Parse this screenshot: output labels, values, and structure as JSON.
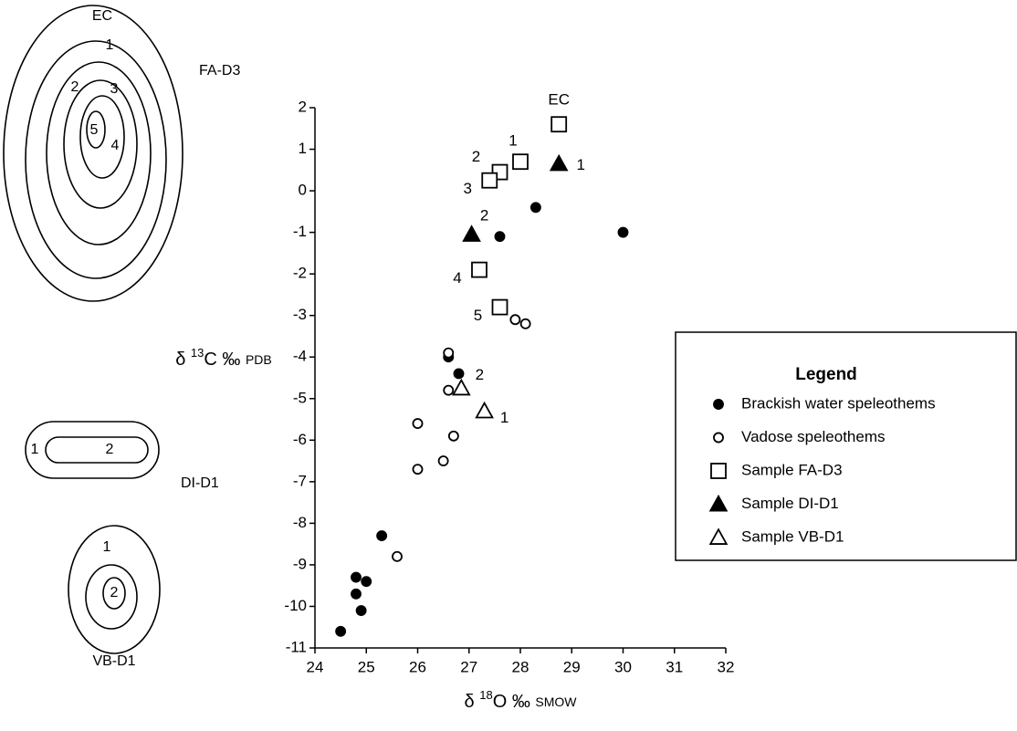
{
  "chart_data": {
    "type": "scatter",
    "x_label": {
      "delta": "δ",
      "isotope": "18",
      "element": "O",
      "unit": "‰",
      "standard": "SMOW"
    },
    "y_label": {
      "delta": "δ",
      "isotope": "13",
      "element": "C",
      "unit": "‰",
      "standard": "PDB"
    },
    "xlim": [
      24,
      32
    ],
    "xticks": [
      24,
      25,
      26,
      27,
      28,
      29,
      30,
      31,
      32
    ],
    "ylim": [
      -11,
      2
    ],
    "yticks": [
      -11,
      -10,
      -9,
      -8,
      -7,
      -6,
      -5,
      -4,
      -3,
      -2,
      -1,
      0,
      1,
      2
    ],
    "legend": {
      "title": "Legend",
      "position": "right"
    },
    "series": [
      {
        "name": "Brackish water speleothems",
        "color": "#000000",
        "marker": "circle",
        "filled": true,
        "x": [
          28.3,
          30.0,
          27.6,
          26.6,
          26.8,
          25.3,
          24.8,
          25.0,
          24.8,
          24.9,
          24.5
        ],
        "y": [
          -0.4,
          -1.0,
          -1.1,
          -4.0,
          -4.4,
          -8.3,
          -9.3,
          -9.4,
          -9.7,
          -10.1,
          -10.6
        ]
      },
      {
        "name": "Vadose speleothems",
        "color": "#000000",
        "marker": "circle",
        "filled": false,
        "x": [
          26.6,
          26.6,
          26.0,
          26.7,
          26.5,
          26.0,
          25.6,
          27.9,
          28.1
        ],
        "y": [
          -3.9,
          -4.8,
          -5.6,
          -5.9,
          -6.5,
          -6.7,
          -8.8,
          -3.1,
          -3.2
        ]
      },
      {
        "name": "Sample FA-D3",
        "color": "#000000",
        "marker": "square",
        "filled": false,
        "x": [
          28.75,
          28.0,
          27.6,
          27.4,
          27.2,
          27.6
        ],
        "y": [
          1.6,
          0.7,
          0.45,
          0.25,
          -1.9,
          -2.8
        ],
        "labels": [
          "EC",
          "1",
          "2",
          "3",
          "4",
          "5"
        ]
      },
      {
        "name": "Sample DI-D1",
        "color": "#000000",
        "marker": "triangle",
        "filled": true,
        "x": [
          28.75,
          27.05
        ],
        "y": [
          0.65,
          -1.05
        ],
        "labels": [
          "1",
          "2"
        ]
      },
      {
        "name": "Sample VB-D1",
        "color": "#000000",
        "marker": "triangle",
        "filled": false,
        "x": [
          27.3,
          26.85
        ],
        "y": [
          -5.3,
          -4.75
        ],
        "labels": [
          "1",
          "2"
        ]
      }
    ]
  },
  "diagrams": [
    {
      "name": "FA-D3",
      "labels": [
        "EC",
        "1",
        "2",
        "3",
        "5",
        "4"
      ]
    },
    {
      "name": "DI-D1",
      "labels": [
        "1",
        "2"
      ]
    },
    {
      "name": "VB-D1",
      "labels": [
        "1",
        "2"
      ]
    }
  ]
}
